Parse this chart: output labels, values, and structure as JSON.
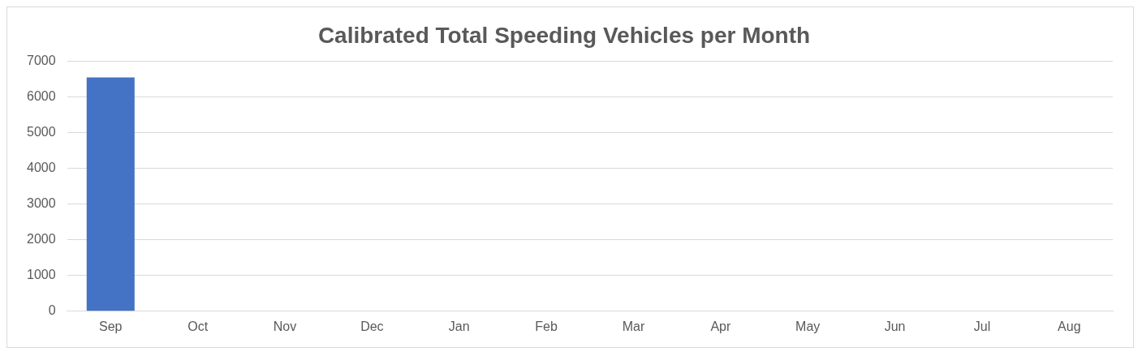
{
  "chart_data": {
    "type": "bar",
    "title": "Calibrated Total Speeding Vehicles per Month",
    "categories": [
      "Sep",
      "Oct",
      "Nov",
      "Dec",
      "Jan",
      "Feb",
      "Mar",
      "Apr",
      "May",
      "Jun",
      "Jul",
      "Aug"
    ],
    "values": [
      6550,
      null,
      null,
      null,
      null,
      null,
      null,
      null,
      null,
      null,
      null,
      null
    ],
    "color": "#4472c4",
    "ylim": [
      0,
      7000
    ],
    "yticks": [
      0,
      1000,
      2000,
      3000,
      4000,
      5000,
      6000,
      7000
    ],
    "grid": "y",
    "legend": false
  }
}
